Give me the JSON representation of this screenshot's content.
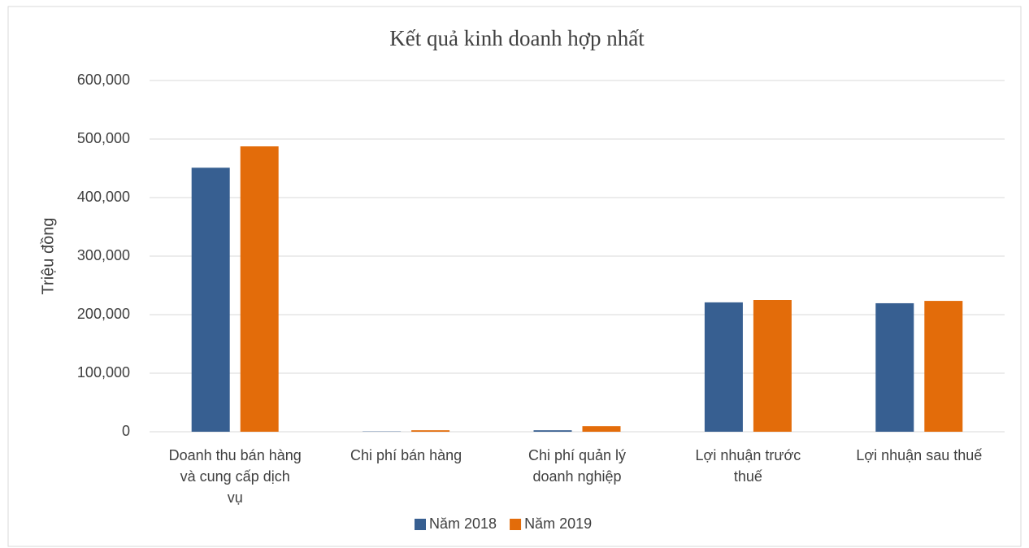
{
  "chart_data": {
    "type": "bar",
    "title": "Kết quả kinh doanh hợp nhất",
    "y_label": "Triệu đồng",
    "categories": [
      "Doanh thu bán hàng và cung cấp dịch vụ",
      "Chi phí bán hàng",
      "Chi phí quản lý doanh nghiệp",
      "Lợi nhuận trước thuế",
      "Lợi nhuận sau thuế"
    ],
    "series": [
      {
        "name": "Năm 2018",
        "color": "#375f91",
        "values": [
          451000,
          500,
          2500,
          221000,
          219500
        ]
      },
      {
        "name": "Năm 2019",
        "color": "#e36c0a",
        "values": [
          487500,
          2500,
          9500,
          225000,
          223500
        ]
      }
    ],
    "ylim": [
      0,
      600000
    ],
    "yticks": [
      0,
      {
        "value": 100000,
        "label": "100,000"
      },
      {
        "value": 200000,
        "label": "200,000"
      },
      {
        "value": 300000,
        "label": "300,000"
      },
      {
        "value": 400000,
        "label": "400,000"
      },
      {
        "value": 500000,
        "label": "500,000"
      },
      {
        "value": 600000,
        "label": "600,000"
      }
    ],
    "grid": true,
    "legend": "bottom"
  }
}
